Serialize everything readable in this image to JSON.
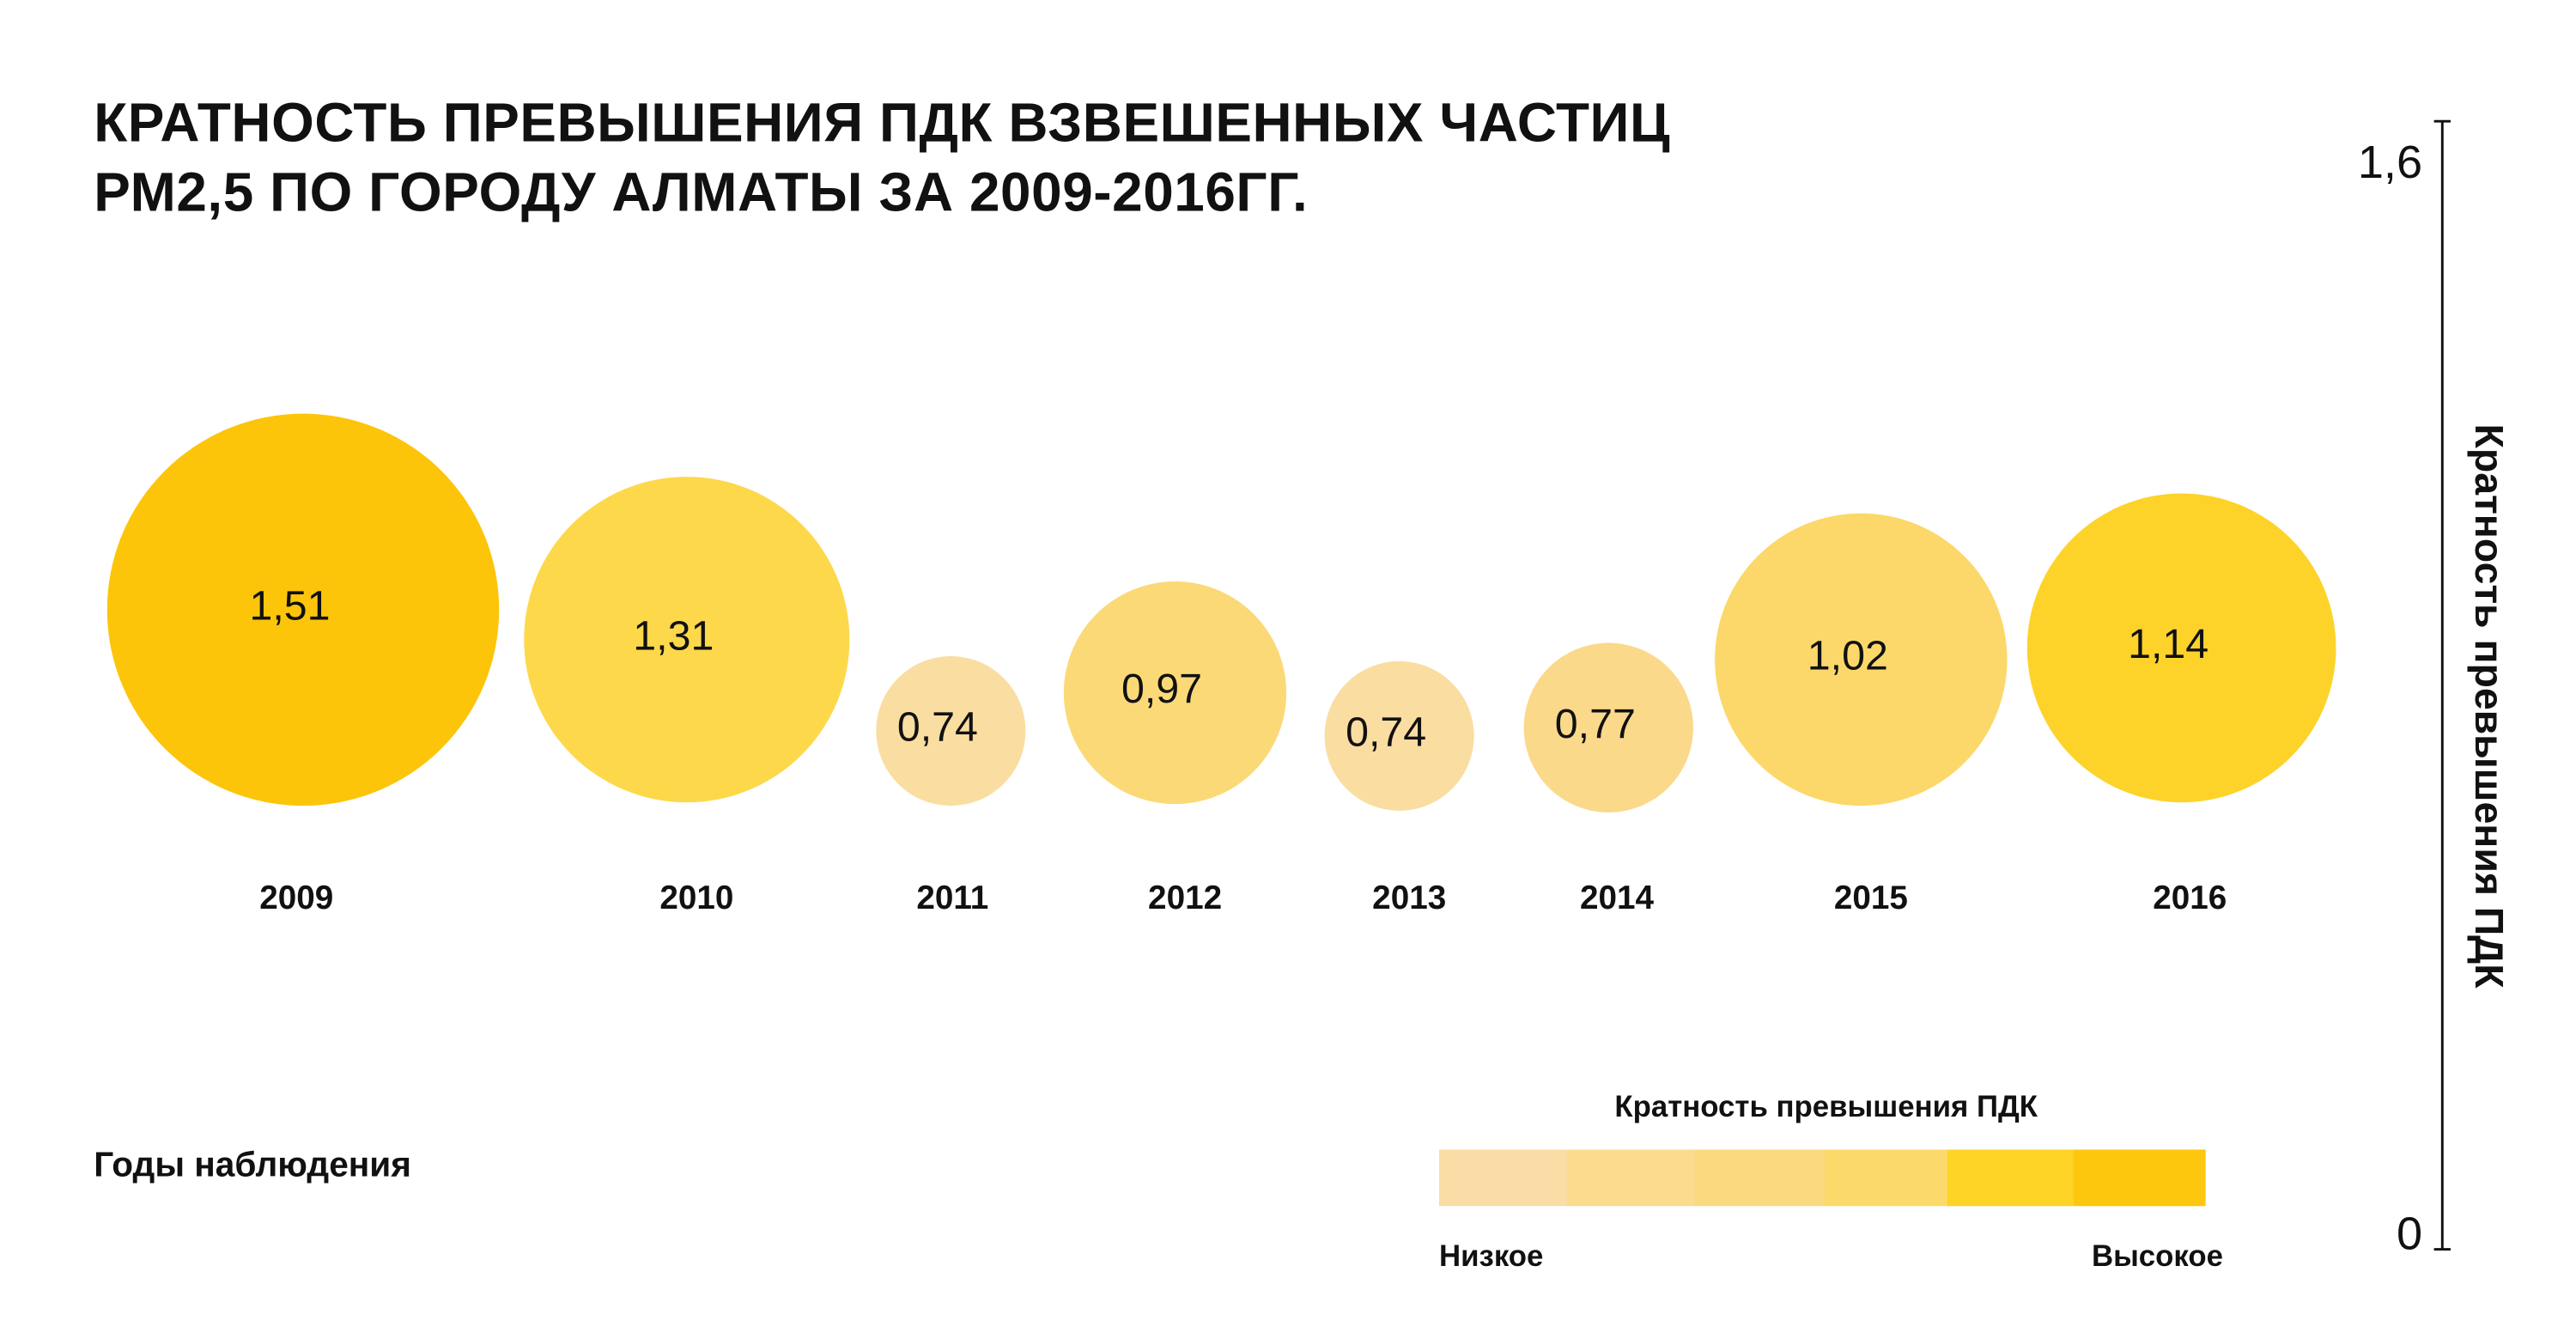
{
  "chart_data": {
    "type": "bubble",
    "title_line1": "КРАТНОСТЬ ПРЕВЫШЕНИЯ ПДК ВЗВЕШЕННЫХ ЧАСТИЦ",
    "title_line2": "РМ2,5 ПО ГОРОДУ АЛМАТЫ ЗА 2009-2016ГГ.",
    "xlabel": "Годы наблюдения",
    "ylabel": "Кратность превышения ПДК",
    "ylim": [
      0,
      1.6
    ],
    "y_ticks": [
      "0",
      "1,6"
    ],
    "categories": [
      "2009",
      "2010",
      "2011",
      "2012",
      "2013",
      "2014",
      "2015",
      "2016"
    ],
    "values": [
      1.51,
      1.31,
      0.74,
      0.97,
      0.74,
      0.77,
      1.02,
      1.14
    ],
    "value_labels": [
      "1,51",
      "1,31",
      "0,74",
      "0,97",
      "0,74",
      "0,77",
      "1,02",
      "1,14"
    ],
    "colors": [
      "#fcc50a",
      "#fdd84a",
      "#fadda0",
      "#fbd977",
      "#fadda0",
      "#fbd98a",
      "#fbd869",
      "#fdd32a"
    ],
    "legend": {
      "title": "Кратность превышения ПДК",
      "low_label": "Низкое",
      "high_label": "Высокое",
      "scale_colors": [
        "#fadca6",
        "#fbdb8e",
        "#fbd97e",
        "#fcd96b",
        "#fdd326",
        "#fdc70e"
      ]
    }
  }
}
